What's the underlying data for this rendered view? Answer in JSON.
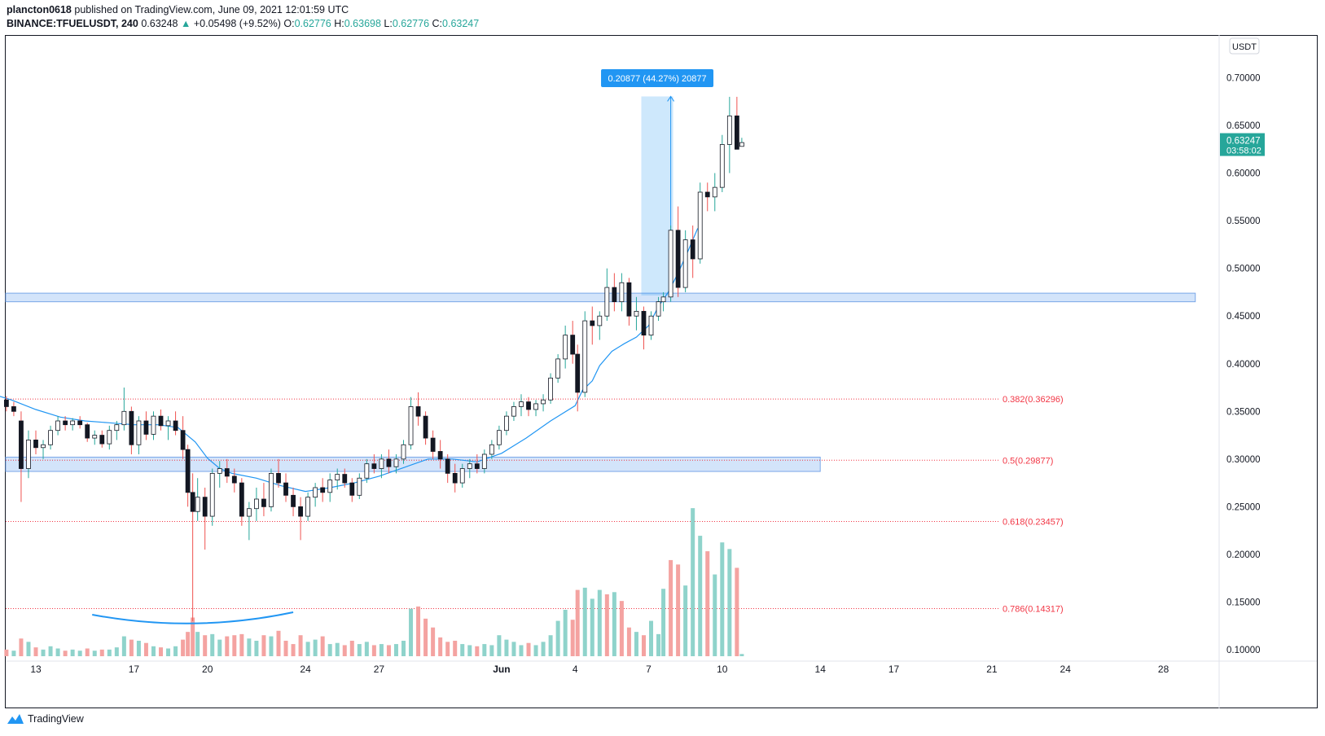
{
  "header": {
    "publisher": "plancton0618",
    "published_text": "published on TradingView.com, June 09, 2021 12:01:59 UTC",
    "symbol": "BINANCE:TFUELUSDT, 240",
    "last": "0.63248",
    "change": "+0.05498 (+9.52%)",
    "o_label": "O:",
    "o": "0.62776",
    "h_label": "H:",
    "h": "0.63698",
    "l_label": "L:",
    "l": "0.62776",
    "c_label": "C:",
    "c": "0.63247",
    "up_arrow": "▲"
  },
  "footer": {
    "brand": "TradingView",
    "icon": "tradingview-logo-icon"
  },
  "colors": {
    "up": "#26a69a",
    "down": "#ef5350",
    "ema": "#2196f3",
    "fib": "#f23645",
    "zone_fill": "#bbd6f7",
    "zone_stroke": "#7aa7e8",
    "candle_body": "#131722",
    "price_tag": "#26a69a"
  },
  "chart_data": {
    "type": "candlestick",
    "currency_label": "USDT",
    "y_ticks": [
      "0.70000",
      "0.65000",
      "0.60000",
      "0.55000",
      "0.50000",
      "0.45000",
      "0.40000",
      "0.35000",
      "0.30000",
      "0.25000",
      "0.20000",
      "0.15000",
      "0.10000"
    ],
    "ylim": [
      0.1,
      0.7
    ],
    "x_ticks": [
      "13",
      "17",
      "20",
      "24",
      "27",
      "Jun",
      "4",
      "7",
      "10",
      "14",
      "17",
      "21",
      "24",
      "28"
    ],
    "x_tick_days": [
      13,
      17,
      20,
      24,
      27,
      32,
      35,
      38,
      41,
      45,
      48,
      52,
      55,
      59
    ],
    "last_price_tag": {
      "price": "0.63247",
      "countdown": "03:58:02"
    },
    "fib_levels": [
      {
        "label": "0.382(0.36296)",
        "price": 0.36296
      },
      {
        "label": "0.5(0.29877)",
        "price": 0.29877
      },
      {
        "label": "0.618(0.23457)",
        "price": 0.23457
      },
      {
        "label": "0.786(0.14317)",
        "price": 0.14317
      }
    ],
    "zones": [
      {
        "name": "resistance-zone",
        "from_price": 0.465,
        "to_price": 0.474,
        "from_day": 10.8,
        "to_day": 60.3
      },
      {
        "name": "support-zone",
        "from_price": 0.287,
        "to_price": 0.302,
        "from_day": 10.8,
        "to_day": 45.0
      }
    ],
    "measure": {
      "label": "0.20877 (44.27%) 20877",
      "from_price": 0.4716,
      "to_price": 0.6804,
      "from_day": 37.7,
      "to_day": 39.0
    },
    "curve_annotation": {
      "from_day": 15.3,
      "to_day": 23.5
    },
    "ema": [
      [
        11.0,
        0.37
      ],
      [
        12.0,
        0.362
      ],
      [
        13.0,
        0.352
      ],
      [
        14.0,
        0.344
      ],
      [
        15.0,
        0.34
      ],
      [
        16.0,
        0.338
      ],
      [
        17.0,
        0.336
      ],
      [
        18.0,
        0.336
      ],
      [
        18.8,
        0.333
      ],
      [
        19.5,
        0.318
      ],
      [
        20.0,
        0.301
      ],
      [
        20.5,
        0.29
      ],
      [
        21.0,
        0.285
      ],
      [
        22.0,
        0.28
      ],
      [
        23.0,
        0.272
      ],
      [
        24.0,
        0.266
      ],
      [
        25.0,
        0.27
      ],
      [
        26.0,
        0.275
      ],
      [
        27.0,
        0.282
      ],
      [
        28.0,
        0.291
      ],
      [
        29.0,
        0.3
      ],
      [
        30.0,
        0.3
      ],
      [
        31.0,
        0.297
      ],
      [
        32.0,
        0.306
      ],
      [
        33.0,
        0.322
      ],
      [
        34.0,
        0.34
      ],
      [
        35.0,
        0.356
      ],
      [
        35.3,
        0.372
      ],
      [
        35.7,
        0.382
      ],
      [
        36.0,
        0.398
      ],
      [
        36.5,
        0.413
      ],
      [
        37.0,
        0.421
      ],
      [
        37.5,
        0.428
      ],
      [
        38.0,
        0.44
      ],
      [
        38.4,
        0.46
      ],
      [
        38.8,
        0.475
      ],
      [
        39.2,
        0.495
      ],
      [
        39.6,
        0.518
      ],
      [
        40.0,
        0.542
      ]
    ],
    "ohlc": [
      [
        11.0,
        0.368,
        0.374,
        0.362,
        0.37
      ],
      [
        11.4,
        0.37,
        0.376,
        0.358,
        0.362
      ],
      [
        11.8,
        0.362,
        0.366,
        0.35,
        0.355
      ],
      [
        12.1,
        0.355,
        0.36,
        0.345,
        0.35
      ],
      [
        12.4,
        0.34,
        0.35,
        0.255,
        0.29
      ],
      [
        12.7,
        0.29,
        0.33,
        0.28,
        0.32
      ],
      [
        13.0,
        0.32,
        0.33,
        0.305,
        0.312
      ],
      [
        13.3,
        0.312,
        0.32,
        0.3,
        0.315
      ],
      [
        13.6,
        0.315,
        0.335,
        0.31,
        0.33
      ],
      [
        13.9,
        0.33,
        0.345,
        0.325,
        0.34
      ],
      [
        14.2,
        0.34,
        0.345,
        0.33,
        0.336
      ],
      [
        14.5,
        0.336,
        0.343,
        0.33,
        0.34
      ],
      [
        14.8,
        0.34,
        0.345,
        0.332,
        0.336
      ],
      [
        15.1,
        0.336,
        0.338,
        0.318,
        0.322
      ],
      [
        15.4,
        0.322,
        0.33,
        0.315,
        0.325
      ],
      [
        15.7,
        0.325,
        0.33,
        0.312,
        0.316
      ],
      [
        16.0,
        0.316,
        0.335,
        0.31,
        0.33
      ],
      [
        16.3,
        0.33,
        0.34,
        0.32,
        0.336
      ],
      [
        16.6,
        0.336,
        0.375,
        0.33,
        0.35
      ],
      [
        16.9,
        0.35,
        0.355,
        0.305,
        0.315
      ],
      [
        17.2,
        0.315,
        0.345,
        0.305,
        0.34
      ],
      [
        17.5,
        0.34,
        0.35,
        0.32,
        0.326
      ],
      [
        17.8,
        0.326,
        0.35,
        0.32,
        0.345
      ],
      [
        18.1,
        0.345,
        0.352,
        0.33,
        0.335
      ],
      [
        18.4,
        0.335,
        0.345,
        0.32,
        0.34
      ],
      [
        18.7,
        0.34,
        0.35,
        0.325,
        0.33
      ],
      [
        19.0,
        0.33,
        0.345,
        0.3,
        0.31
      ],
      [
        19.2,
        0.31,
        0.315,
        0.25,
        0.265
      ],
      [
        19.4,
        0.265,
        0.285,
        0.13,
        0.245
      ],
      [
        19.6,
        0.245,
        0.28,
        0.235,
        0.26
      ],
      [
        19.9,
        0.26,
        0.27,
        0.205,
        0.24
      ],
      [
        20.2,
        0.24,
        0.29,
        0.23,
        0.285
      ],
      [
        20.5,
        0.285,
        0.298,
        0.27,
        0.29
      ],
      [
        20.8,
        0.29,
        0.3,
        0.275,
        0.282
      ],
      [
        21.1,
        0.282,
        0.29,
        0.265,
        0.275
      ],
      [
        21.4,
        0.275,
        0.28,
        0.23,
        0.24
      ],
      [
        21.7,
        0.24,
        0.255,
        0.215,
        0.248
      ],
      [
        22.0,
        0.248,
        0.27,
        0.235,
        0.258
      ],
      [
        22.3,
        0.258,
        0.275,
        0.24,
        0.25
      ],
      [
        22.6,
        0.25,
        0.29,
        0.245,
        0.285
      ],
      [
        22.9,
        0.285,
        0.3,
        0.27,
        0.275
      ],
      [
        23.2,
        0.275,
        0.285,
        0.255,
        0.262
      ],
      [
        23.5,
        0.262,
        0.27,
        0.24,
        0.25
      ],
      [
        23.8,
        0.25,
        0.26,
        0.215,
        0.24
      ],
      [
        24.1,
        0.24,
        0.265,
        0.235,
        0.26
      ],
      [
        24.4,
        0.26,
        0.275,
        0.25,
        0.27
      ],
      [
        24.7,
        0.27,
        0.28,
        0.255,
        0.265
      ],
      [
        25.0,
        0.265,
        0.285,
        0.255,
        0.278
      ],
      [
        25.3,
        0.278,
        0.29,
        0.268,
        0.284
      ],
      [
        25.6,
        0.284,
        0.29,
        0.27,
        0.275
      ],
      [
        25.9,
        0.275,
        0.28,
        0.255,
        0.262
      ],
      [
        26.2,
        0.262,
        0.285,
        0.258,
        0.28
      ],
      [
        26.5,
        0.28,
        0.3,
        0.275,
        0.295
      ],
      [
        26.8,
        0.295,
        0.305,
        0.285,
        0.29
      ],
      [
        27.1,
        0.29,
        0.305,
        0.28,
        0.3
      ],
      [
        27.4,
        0.3,
        0.31,
        0.285,
        0.292
      ],
      [
        27.7,
        0.292,
        0.305,
        0.285,
        0.3
      ],
      [
        28.0,
        0.3,
        0.32,
        0.295,
        0.315
      ],
      [
        28.3,
        0.315,
        0.365,
        0.31,
        0.355
      ],
      [
        28.6,
        0.355,
        0.37,
        0.335,
        0.345
      ],
      [
        28.9,
        0.345,
        0.35,
        0.315,
        0.322
      ],
      [
        29.2,
        0.322,
        0.33,
        0.3,
        0.308
      ],
      [
        29.5,
        0.308,
        0.32,
        0.29,
        0.3
      ],
      [
        29.8,
        0.3,
        0.305,
        0.275,
        0.285
      ],
      [
        30.1,
        0.285,
        0.295,
        0.265,
        0.275
      ],
      [
        30.4,
        0.275,
        0.295,
        0.27,
        0.29
      ],
      [
        30.7,
        0.29,
        0.3,
        0.28,
        0.295
      ],
      [
        31.0,
        0.295,
        0.305,
        0.285,
        0.29
      ],
      [
        31.3,
        0.29,
        0.31,
        0.285,
        0.305
      ],
      [
        31.6,
        0.305,
        0.32,
        0.3,
        0.315
      ],
      [
        31.9,
        0.315,
        0.335,
        0.31,
        0.33
      ],
      [
        32.2,
        0.33,
        0.35,
        0.325,
        0.345
      ],
      [
        32.5,
        0.345,
        0.36,
        0.34,
        0.355
      ],
      [
        32.8,
        0.355,
        0.368,
        0.345,
        0.36
      ],
      [
        33.1,
        0.36,
        0.365,
        0.345,
        0.352
      ],
      [
        33.4,
        0.352,
        0.362,
        0.345,
        0.358
      ],
      [
        33.7,
        0.358,
        0.368,
        0.35,
        0.362
      ],
      [
        34.0,
        0.362,
        0.39,
        0.358,
        0.385
      ],
      [
        34.3,
        0.385,
        0.41,
        0.38,
        0.405
      ],
      [
        34.6,
        0.405,
        0.44,
        0.395,
        0.43
      ],
      [
        34.9,
        0.43,
        0.445,
        0.4,
        0.41
      ],
      [
        35.1,
        0.41,
        0.42,
        0.35,
        0.37
      ],
      [
        35.4,
        0.37,
        0.455,
        0.365,
        0.445
      ],
      [
        35.7,
        0.445,
        0.46,
        0.42,
        0.44
      ],
      [
        36.0,
        0.44,
        0.455,
        0.425,
        0.45
      ],
      [
        36.3,
        0.45,
        0.5,
        0.445,
        0.48
      ],
      [
        36.6,
        0.48,
        0.495,
        0.455,
        0.465
      ],
      [
        36.9,
        0.465,
        0.495,
        0.455,
        0.485
      ],
      [
        37.2,
        0.485,
        0.49,
        0.44,
        0.45
      ],
      [
        37.5,
        0.45,
        0.47,
        0.435,
        0.455
      ],
      [
        37.8,
        0.455,
        0.46,
        0.415,
        0.43
      ],
      [
        38.1,
        0.43,
        0.455,
        0.425,
        0.45
      ],
      [
        38.4,
        0.45,
        0.47,
        0.445,
        0.465
      ],
      [
        38.6,
        0.465,
        0.475,
        0.455,
        0.47
      ],
      [
        38.9,
        0.47,
        0.545,
        0.465,
        0.54
      ],
      [
        39.2,
        0.54,
        0.565,
        0.47,
        0.48
      ],
      [
        39.5,
        0.48,
        0.54,
        0.475,
        0.53
      ],
      [
        39.8,
        0.53,
        0.545,
        0.49,
        0.51
      ],
      [
        40.1,
        0.51,
        0.59,
        0.505,
        0.58
      ],
      [
        40.4,
        0.58,
        0.59,
        0.56,
        0.575
      ],
      [
        40.7,
        0.575,
        0.6,
        0.56,
        0.585
      ],
      [
        41.0,
        0.585,
        0.64,
        0.58,
        0.63
      ],
      [
        41.3,
        0.63,
        0.68,
        0.6,
        0.66
      ],
      [
        41.6,
        0.66,
        0.68,
        0.625,
        0.625
      ],
      [
        41.8,
        0.628,
        0.637,
        0.628,
        0.632
      ]
    ],
    "volume": [
      [
        11.0,
        0.7,
        "up"
      ],
      [
        11.4,
        0.9,
        "down"
      ],
      [
        11.8,
        0.6,
        "down"
      ],
      [
        12.1,
        0.5,
        "up"
      ],
      [
        12.4,
        1.6,
        "down"
      ],
      [
        12.7,
        1.3,
        "up"
      ],
      [
        13.0,
        0.8,
        "down"
      ],
      [
        13.3,
        0.6,
        "up"
      ],
      [
        13.6,
        0.9,
        "up"
      ],
      [
        13.9,
        0.7,
        "up"
      ],
      [
        14.2,
        0.5,
        "down"
      ],
      [
        14.5,
        0.6,
        "up"
      ],
      [
        14.8,
        0.5,
        "up"
      ],
      [
        15.1,
        0.7,
        "down"
      ],
      [
        15.4,
        0.5,
        "up"
      ],
      [
        15.7,
        0.6,
        "down"
      ],
      [
        16.0,
        0.6,
        "up"
      ],
      [
        16.3,
        0.8,
        "up"
      ],
      [
        16.6,
        1.8,
        "up"
      ],
      [
        16.9,
        1.5,
        "down"
      ],
      [
        17.2,
        1.4,
        "up"
      ],
      [
        17.5,
        1.2,
        "down"
      ],
      [
        17.8,
        0.9,
        "up"
      ],
      [
        18.1,
        0.8,
        "down"
      ],
      [
        18.4,
        0.7,
        "up"
      ],
      [
        18.7,
        0.9,
        "up"
      ],
      [
        19.0,
        1.5,
        "down"
      ],
      [
        19.2,
        2.2,
        "down"
      ],
      [
        19.4,
        3.5,
        "down"
      ],
      [
        19.6,
        2.2,
        "up"
      ],
      [
        19.9,
        1.9,
        "down"
      ],
      [
        20.2,
        2.0,
        "up"
      ],
      [
        20.5,
        1.5,
        "up"
      ],
      [
        20.8,
        1.8,
        "down"
      ],
      [
        21.1,
        1.9,
        "down"
      ],
      [
        21.4,
        2.0,
        "down"
      ],
      [
        21.7,
        1.6,
        "up"
      ],
      [
        22.0,
        1.4,
        "up"
      ],
      [
        22.3,
        1.9,
        "down"
      ],
      [
        22.6,
        1.8,
        "up"
      ],
      [
        22.9,
        2.3,
        "down"
      ],
      [
        23.2,
        1.4,
        "down"
      ],
      [
        23.5,
        1.1,
        "down"
      ],
      [
        23.8,
        1.9,
        "down"
      ],
      [
        24.1,
        1.3,
        "up"
      ],
      [
        24.4,
        1.5,
        "up"
      ],
      [
        24.7,
        1.8,
        "down"
      ],
      [
        25.0,
        1.1,
        "up"
      ],
      [
        25.3,
        1.2,
        "up"
      ],
      [
        25.6,
        1.0,
        "down"
      ],
      [
        25.9,
        1.4,
        "down"
      ],
      [
        26.2,
        1.1,
        "up"
      ],
      [
        26.5,
        1.3,
        "up"
      ],
      [
        26.8,
        1.0,
        "down"
      ],
      [
        27.1,
        1.1,
        "up"
      ],
      [
        27.4,
        1.0,
        "down"
      ],
      [
        27.7,
        1.1,
        "up"
      ],
      [
        28.0,
        1.4,
        "up"
      ],
      [
        28.3,
        4.3,
        "up"
      ],
      [
        28.6,
        4.5,
        "down"
      ],
      [
        28.9,
        3.4,
        "down"
      ],
      [
        29.2,
        2.6,
        "down"
      ],
      [
        29.5,
        1.7,
        "down"
      ],
      [
        29.8,
        1.3,
        "down"
      ],
      [
        30.1,
        1.4,
        "down"
      ],
      [
        30.4,
        1.1,
        "up"
      ],
      [
        30.7,
        1.0,
        "up"
      ],
      [
        31.0,
        0.9,
        "down"
      ],
      [
        31.3,
        1.1,
        "up"
      ],
      [
        31.6,
        1.0,
        "up"
      ],
      [
        31.9,
        1.9,
        "up"
      ],
      [
        32.2,
        1.5,
        "up"
      ],
      [
        32.5,
        1.3,
        "up"
      ],
      [
        32.8,
        1.0,
        "up"
      ],
      [
        33.1,
        1.2,
        "down"
      ],
      [
        33.4,
        1.0,
        "up"
      ],
      [
        33.7,
        1.3,
        "up"
      ],
      [
        34.0,
        1.9,
        "up"
      ],
      [
        34.3,
        3.2,
        "up"
      ],
      [
        34.6,
        4.2,
        "up"
      ],
      [
        34.9,
        3.3,
        "down"
      ],
      [
        35.1,
        6.0,
        "down"
      ],
      [
        35.4,
        6.2,
        "up"
      ],
      [
        35.7,
        5.2,
        "up"
      ],
      [
        36.0,
        6.0,
        "up"
      ],
      [
        36.3,
        5.6,
        "down"
      ],
      [
        36.6,
        5.8,
        "up"
      ],
      [
        36.9,
        5.0,
        "down"
      ],
      [
        37.2,
        2.6,
        "down"
      ],
      [
        37.5,
        2.2,
        "up"
      ],
      [
        37.8,
        1.9,
        "down"
      ],
      [
        38.1,
        3.2,
        "up"
      ],
      [
        38.4,
        2.0,
        "up"
      ],
      [
        38.6,
        6.1,
        "up"
      ],
      [
        38.9,
        8.7,
        "down"
      ],
      [
        39.2,
        8.3,
        "down"
      ],
      [
        39.5,
        6.4,
        "up"
      ],
      [
        39.8,
        13.4,
        "up"
      ],
      [
        40.1,
        10.9,
        "up"
      ],
      [
        40.4,
        9.5,
        "down"
      ],
      [
        40.7,
        7.4,
        "up"
      ],
      [
        41.0,
        10.3,
        "up"
      ],
      [
        41.3,
        9.7,
        "up"
      ],
      [
        41.6,
        8.0,
        "down"
      ],
      [
        41.8,
        0.2,
        "up"
      ]
    ],
    "volume_max": 14
  }
}
